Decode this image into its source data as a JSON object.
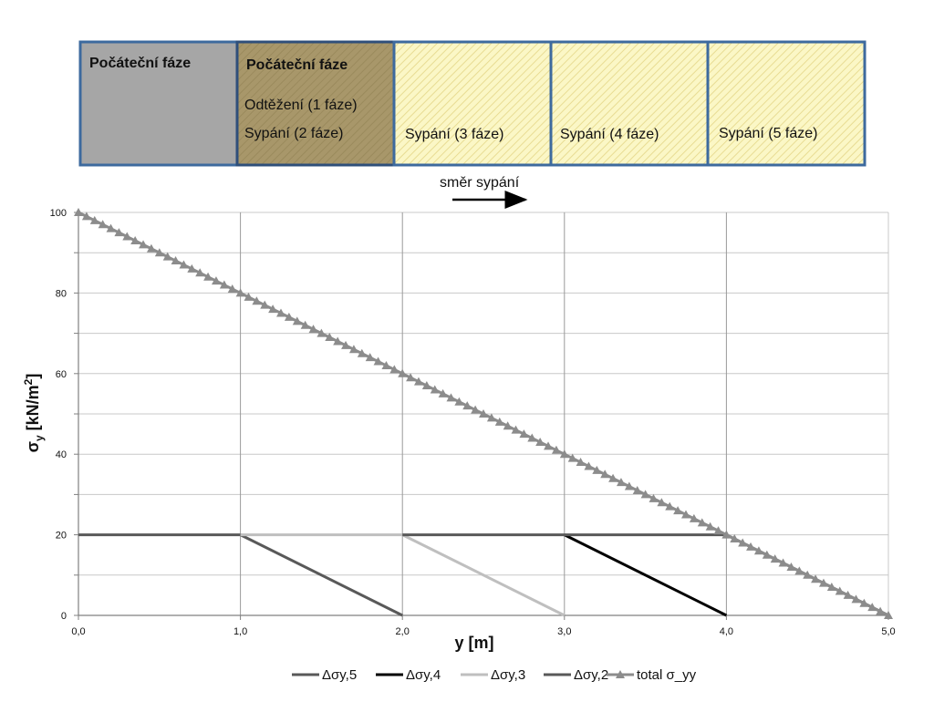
{
  "phases": [
    {
      "title": "Počáteční fáze",
      "lines": []
    },
    {
      "title": "Počáteční fáze",
      "lines": [
        "Odtěžení (1 fáze)",
        "Sypání (2 fáze)"
      ]
    },
    {
      "title": "",
      "lines": [
        "Sypání (3 fáze)"
      ]
    },
    {
      "title": "",
      "lines": [
        "Sypání (4 fáze)"
      ]
    },
    {
      "title": "",
      "lines": [
        "Sypání (5 fáze)"
      ]
    }
  ],
  "direction_label": "směr sypání",
  "colors": {
    "box_border": "#3d6a9e",
    "phase1_fill": "#a6a6a6",
    "phase2_fill": "#a8976a",
    "phase_hatch_fill": "#fbf7c6",
    "phase_hatch_line": "#e8dc93",
    "grid": "#c8c8c8",
    "axis": "#808080"
  },
  "chart_data": {
    "type": "line",
    "xlabel": "y [m]",
    "ylabel": "σ",
    "ylabel_sub": "y",
    "ylabel_units": " [kN/m",
    "ylabel_sup": "2",
    "ylabel_close": "]",
    "xlim": [
      0,
      5
    ],
    "ylim": [
      0,
      100
    ],
    "xticks": [
      0,
      1,
      2,
      3,
      4,
      5
    ],
    "xtick_labels": [
      "0,0",
      "1,0",
      "2,0",
      "3,0",
      "4,0",
      "5,0"
    ],
    "yticks": [
      0,
      20,
      40,
      60,
      80,
      100
    ],
    "ytick_labels": [
      "0",
      "20",
      "40",
      "60",
      "80",
      "100"
    ],
    "y_minor_step": 10,
    "grid": true,
    "legend_position": "bottom",
    "series": [
      {
        "name": "Δσy,5",
        "color": "#595959",
        "width": 3,
        "marker": "none",
        "points": [
          [
            0,
            20
          ],
          [
            1,
            20
          ],
          [
            2,
            0
          ]
        ]
      },
      {
        "name": "Δσy,4",
        "color": "#000000",
        "width": 3,
        "marker": "none",
        "points": [
          [
            3,
            20
          ],
          [
            4,
            0
          ]
        ]
      },
      {
        "name": "Δσy,3",
        "color": "#bfbfbf",
        "width": 3,
        "marker": "none",
        "points": [
          [
            1,
            20
          ],
          [
            2,
            20
          ],
          [
            3,
            0
          ]
        ]
      },
      {
        "name": "Δσy,2",
        "color": "#595959",
        "width": 3,
        "marker": "none",
        "points": [
          [
            2,
            20
          ],
          [
            3,
            20
          ],
          [
            4,
            20
          ],
          [
            5,
            0
          ]
        ]
      },
      {
        "name": "total σ_yy",
        "color": "#8c8c8c",
        "width": 3,
        "marker": "triangle",
        "marker_step": 0.05,
        "points": [
          [
            0,
            100
          ],
          [
            5,
            0
          ]
        ]
      }
    ]
  }
}
